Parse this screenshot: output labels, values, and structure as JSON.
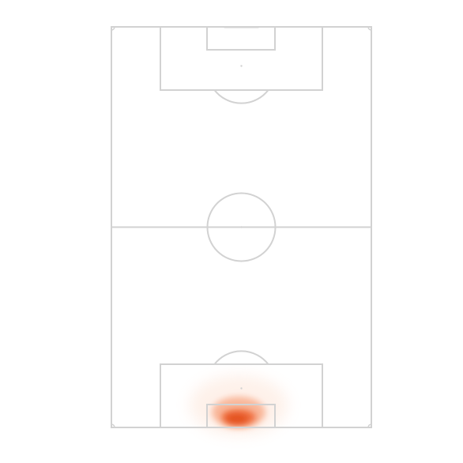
{
  "pitch": {
    "orientation": "vertical",
    "line_color": "#d2d2d2",
    "background_color": "#ffffff"
  },
  "heatmap": {
    "colors": [
      "#fde0d0",
      "#f7a07a",
      "#ef6a3a",
      "#e2501f"
    ],
    "zone": "own-goal-area-bottom"
  }
}
